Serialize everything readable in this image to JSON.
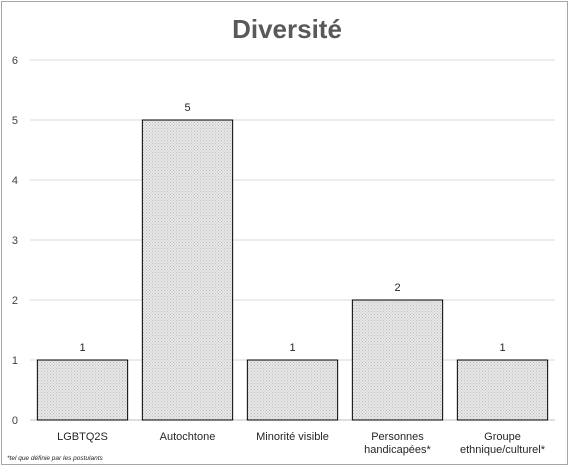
{
  "chart_data": {
    "type": "bar",
    "title": "Diversité",
    "categories": [
      [
        "LGBTQ2S"
      ],
      [
        "Autochtone"
      ],
      [
        "Minorité visible"
      ],
      [
        "Personnes",
        "handicapées*"
      ],
      [
        "Groupe",
        "ethnique/culturel*"
      ]
    ],
    "values": [
      1,
      5,
      1,
      2,
      1
    ],
    "data_labels": [
      "1",
      "5",
      "1",
      "2",
      "1"
    ],
    "ylim": [
      0,
      6
    ],
    "yticks": [
      0,
      1,
      2,
      3,
      4,
      5,
      6
    ],
    "xlabel": "",
    "ylabel": "",
    "grid": true,
    "legend": "none",
    "footnote": "*tel que définie par les postulants",
    "colors": {
      "bar_fill": "#d9d9d9",
      "bar_stroke": "#000000",
      "grid": "#d9d9d9",
      "title": "#595959"
    }
  }
}
